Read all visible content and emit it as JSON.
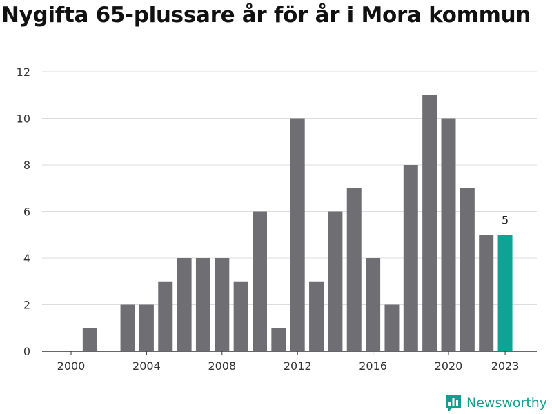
{
  "chart_data": {
    "type": "bar",
    "title": "Nygifta 65-plussare år för år i Mora kommun",
    "xlabel": "",
    "ylabel": "",
    "categories": [
      "2000",
      "2001",
      "2002",
      "2003",
      "2004",
      "2005",
      "2006",
      "2007",
      "2008",
      "2009",
      "2010",
      "2011",
      "2012",
      "2013",
      "2014",
      "2015",
      "2016",
      "2017",
      "2018",
      "2019",
      "2020",
      "2021",
      "2022",
      "2023"
    ],
    "values": [
      0,
      1,
      0,
      2,
      2,
      3,
      4,
      4,
      4,
      3,
      6,
      1,
      10,
      3,
      6,
      7,
      4,
      2,
      8,
      11,
      10,
      7,
      5,
      5
    ],
    "ylim": [
      0,
      12
    ],
    "yticks": [
      0,
      2,
      4,
      6,
      8,
      10,
      12
    ],
    "xtick_labels": [
      "2000",
      "2004",
      "2008",
      "2012",
      "2016",
      "2020",
      "2023"
    ],
    "highlight": {
      "category": "2023",
      "label": "5"
    },
    "grid": true,
    "colors": {
      "bar": "#6f6e73",
      "highlight": "#0fa396",
      "grid": "#dddddd",
      "axis": "#333333",
      "text": "#333333"
    }
  },
  "brand": {
    "name": "Newsworthy",
    "icon": "newsworthy-logo-icon",
    "color": "#179c8f"
  }
}
